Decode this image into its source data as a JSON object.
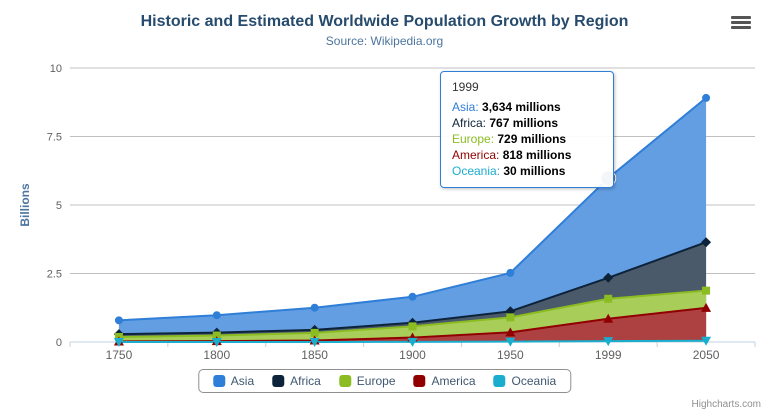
{
  "chart_data": {
    "type": "area",
    "stacking": "normal",
    "title": "Historic and Estimated Worldwide Population Growth by Region",
    "subtitle": "Source: Wikipedia.org",
    "xlabel": "",
    "ylabel": "Billions",
    "categories": [
      "1750",
      "1800",
      "1850",
      "1900",
      "1950",
      "1999",
      "2050"
    ],
    "series": [
      {
        "name": "Asia",
        "color": "#2f7ed8",
        "marker": "circle",
        "values": [
          502,
          635,
          809,
          947,
          1402,
          3634,
          5268
        ]
      },
      {
        "name": "Africa",
        "color": "#0d233a",
        "marker": "diamond",
        "values": [
          106,
          107,
          111,
          133,
          221,
          767,
          1766
        ]
      },
      {
        "name": "Europe",
        "color": "#8bbc21",
        "marker": "square",
        "values": [
          163,
          203,
          276,
          408,
          547,
          729,
          628
        ]
      },
      {
        "name": "America",
        "color": "#910000",
        "marker": "triangle",
        "values": [
          18,
          31,
          54,
          156,
          339,
          818,
          1201
        ]
      },
      {
        "name": "Oceania",
        "color": "#1aadce",
        "marker": "triangle-down",
        "values": [
          2,
          2,
          2,
          6,
          13,
          30,
          46
        ]
      }
    ],
    "values_unit": "millions",
    "axis_divisor": 1000,
    "ylim": [
      0,
      10
    ],
    "yticks": [
      0,
      2.5,
      5,
      7.5,
      10
    ],
    "grid": true,
    "legend_position": "bottom",
    "hover_point": {
      "series_index": 0,
      "point_index": 5
    }
  },
  "tooltip": {
    "header": "1999",
    "border_color": "#2f7ed8",
    "rows": [
      {
        "name": "Asia",
        "color": "#2f7ed8",
        "value": "3,634 millions"
      },
      {
        "name": "Africa",
        "color": "#0d233a",
        "value": "767 millions"
      },
      {
        "name": "Europe",
        "color": "#8bbc21",
        "value": "729 millions"
      },
      {
        "name": "America",
        "color": "#910000",
        "value": "818 millions"
      },
      {
        "name": "Oceania",
        "color": "#1aadce",
        "value": "30 millions"
      }
    ]
  },
  "credits": "Highcharts.com"
}
